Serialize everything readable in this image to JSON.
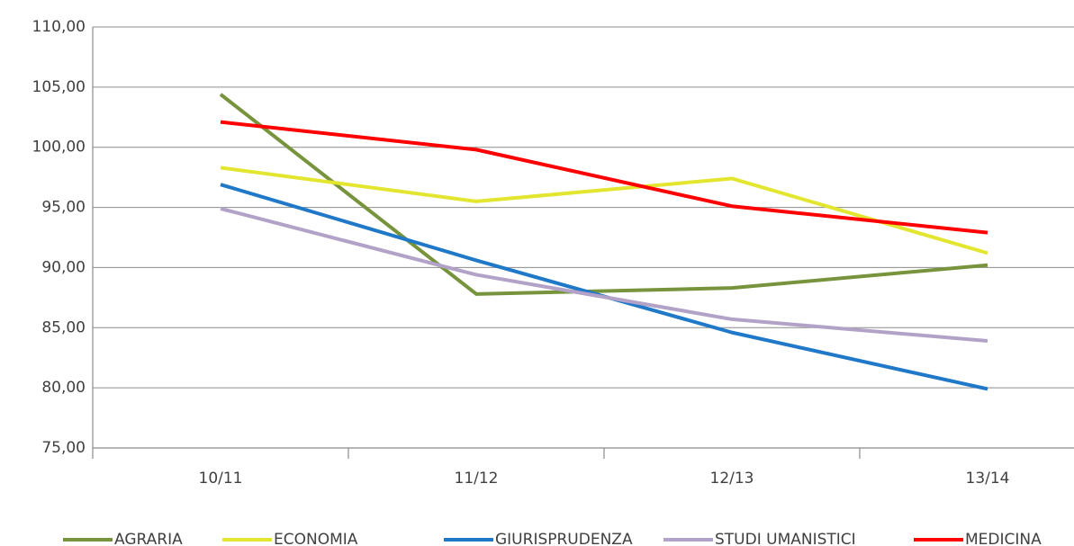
{
  "chart_data": {
    "type": "line",
    "categories": [
      "10/11",
      "11/12",
      "12/13",
      "13/14"
    ],
    "series": [
      {
        "name": "AGRARIA",
        "color": "#77933c",
        "values": [
          104.4,
          87.8,
          88.3,
          90.2
        ]
      },
      {
        "name": "ECONOMIA",
        "color": "#e2e62e",
        "values": [
          98.3,
          95.5,
          97.4,
          91.2
        ]
      },
      {
        "name": "GIURISPRUDENZA",
        "color": "#1f78c8",
        "values": [
          96.9,
          90.6,
          84.6,
          79.9
        ]
      },
      {
        "name": "STUDI UMANISTICI",
        "color": "#b3a2c7",
        "values": [
          94.9,
          89.4,
          85.7,
          83.9
        ]
      },
      {
        "name": "MEDICINA",
        "color": "#ff0000",
        "values": [
          102.1,
          99.8,
          95.1,
          92.9
        ]
      }
    ],
    "ylim": [
      75,
      110
    ],
    "yticks": [
      {
        "value": 75,
        "label": "75,00"
      },
      {
        "value": 80,
        "label": "80,00"
      },
      {
        "value": 85,
        "label": "85,00"
      },
      {
        "value": 90,
        "label": "90,00"
      },
      {
        "value": 95,
        "label": "95,00"
      },
      {
        "value": 100,
        "label": "100,00"
      },
      {
        "value": 105,
        "label": "105,00"
      },
      {
        "value": 110,
        "label": "110,00"
      }
    ],
    "grid": true,
    "legend": "bottom"
  }
}
